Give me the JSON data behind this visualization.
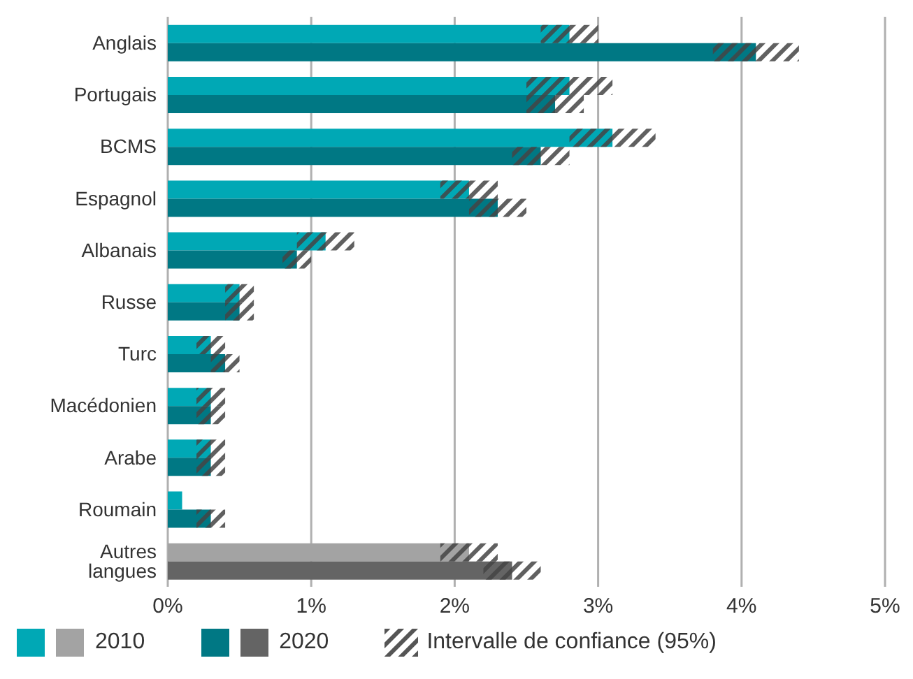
{
  "chart_data": {
    "type": "bar",
    "orientation": "horizontal",
    "categories": [
      "Anglais",
      "Portugais",
      "BCMS",
      "Espagnol",
      "Albanais",
      "Russe",
      "Turc",
      "Macédonien",
      "Arabe",
      "Roumain",
      "Autres langues"
    ],
    "series": [
      {
        "name": "2010",
        "colors": [
          "#00a8b5",
          "#00a8b5",
          "#00a8b5",
          "#00a8b5",
          "#00a8b5",
          "#00a8b5",
          "#00a8b5",
          "#00a8b5",
          "#00a8b5",
          "#00a8b5",
          "#a3a3a3"
        ],
        "values": [
          2.8,
          2.8,
          3.1,
          2.1,
          1.1,
          0.5,
          0.3,
          0.3,
          0.3,
          0.1,
          2.1
        ],
        "errors": [
          [
            2.6,
            3.0
          ],
          [
            2.5,
            3.1
          ],
          [
            2.8,
            3.4
          ],
          [
            1.9,
            2.3
          ],
          [
            0.9,
            1.3
          ],
          [
            0.4,
            0.6
          ],
          [
            0.2,
            0.4
          ],
          [
            0.2,
            0.4
          ],
          [
            0.2,
            0.4
          ],
          [
            0.1,
            0.1
          ],
          [
            1.9,
            2.3
          ]
        ]
      },
      {
        "name": "2020",
        "colors": [
          "#007884",
          "#007884",
          "#007884",
          "#007884",
          "#007884",
          "#007884",
          "#007884",
          "#007884",
          "#007884",
          "#007884",
          "#646464"
        ],
        "values": [
          4.1,
          2.7,
          2.6,
          2.3,
          0.9,
          0.5,
          0.4,
          0.3,
          0.3,
          0.3,
          2.4
        ],
        "errors": [
          [
            3.8,
            4.4
          ],
          [
            2.5,
            2.9
          ],
          [
            2.4,
            2.8
          ],
          [
            2.1,
            2.5
          ],
          [
            0.8,
            1.0
          ],
          [
            0.4,
            0.6
          ],
          [
            0.3,
            0.5
          ],
          [
            0.2,
            0.4
          ],
          [
            0.2,
            0.4
          ],
          [
            0.2,
            0.4
          ],
          [
            2.2,
            2.6
          ]
        ]
      }
    ],
    "xlim": [
      0,
      5
    ],
    "xticks": [
      {
        "value": 0,
        "label": "0%"
      },
      {
        "value": 1,
        "label": "1%"
      },
      {
        "value": 2,
        "label": "2%"
      },
      {
        "value": 3,
        "label": "3%"
      },
      {
        "value": 4,
        "label": "4%"
      },
      {
        "value": 5,
        "label": "5%"
      }
    ],
    "grid": "x",
    "legend": "bottom",
    "annotations": [
      "Intervalle de confiance (95%)"
    ]
  }
}
